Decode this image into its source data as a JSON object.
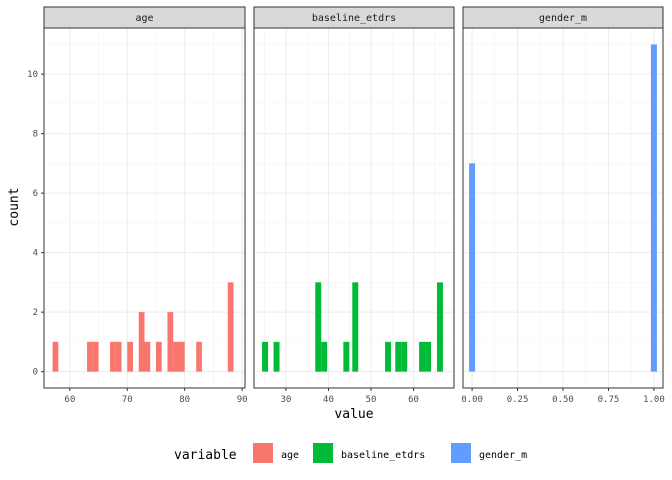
{
  "chart_data": {
    "type": "bar",
    "kind": "faceted histogram",
    "xlabel": "value",
    "ylabel": "count",
    "ylim": [
      -0.55,
      11.55
    ],
    "y_ticks": [
      0,
      2,
      4,
      6,
      8,
      10
    ],
    "grid": true,
    "legend": {
      "title": "variable",
      "position": "bottom",
      "entries": [
        {
          "label": "age",
          "color": "#F8766D"
        },
        {
          "label": "baseline_etdrs",
          "color": "#00BA38"
        },
        {
          "label": "gender_m",
          "color": "#619CFF"
        }
      ]
    },
    "facets": [
      {
        "name": "age",
        "color": "#F8766D",
        "xlim": [
          55.5,
          90.5
        ],
        "x_ticks": [
          60,
          70,
          80,
          90
        ],
        "bin_width": 1,
        "bins": [
          {
            "x": 57.5,
            "count": 1
          },
          {
            "x": 63.5,
            "count": 1
          },
          {
            "x": 64.5,
            "count": 1
          },
          {
            "x": 67.5,
            "count": 1
          },
          {
            "x": 68.5,
            "count": 1
          },
          {
            "x": 70.5,
            "count": 1
          },
          {
            "x": 72.5,
            "count": 2
          },
          {
            "x": 73.5,
            "count": 1
          },
          {
            "x": 75.5,
            "count": 1
          },
          {
            "x": 77.5,
            "count": 2
          },
          {
            "x": 78.5,
            "count": 1
          },
          {
            "x": 79.5,
            "count": 1
          },
          {
            "x": 82.5,
            "count": 1
          },
          {
            "x": 88.0,
            "count": 3
          }
        ]
      },
      {
        "name": "baseline_etdrs",
        "color": "#00BA38",
        "xlim": [
          22.5,
          69.5
        ],
        "x_ticks": [
          30,
          40,
          50,
          60
        ],
        "bin_width": 1.4,
        "bins": [
          {
            "x": 25.1,
            "count": 1
          },
          {
            "x": 27.8,
            "count": 1
          },
          {
            "x": 37.6,
            "count": 3
          },
          {
            "x": 39.0,
            "count": 1
          },
          {
            "x": 44.2,
            "count": 1
          },
          {
            "x": 46.3,
            "count": 3
          },
          {
            "x": 54.0,
            "count": 1
          },
          {
            "x": 56.4,
            "count": 1
          },
          {
            "x": 57.8,
            "count": 1
          },
          {
            "x": 62.0,
            "count": 1
          },
          {
            "x": 63.4,
            "count": 1
          },
          {
            "x": 66.2,
            "count": 3
          }
        ]
      },
      {
        "name": "gender_m",
        "color": "#619CFF",
        "xlim": [
          -0.05,
          1.05
        ],
        "x_ticks": [
          0.0,
          0.25,
          0.5,
          0.75,
          1.0
        ],
        "x_tick_labels": [
          "0.00",
          "0.25",
          "0.50",
          "0.75",
          "1.00"
        ],
        "bin_width": 0.033,
        "bins": [
          {
            "x": 0.0,
            "count": 7
          },
          {
            "x": 1.0,
            "count": 11
          }
        ]
      }
    ]
  }
}
